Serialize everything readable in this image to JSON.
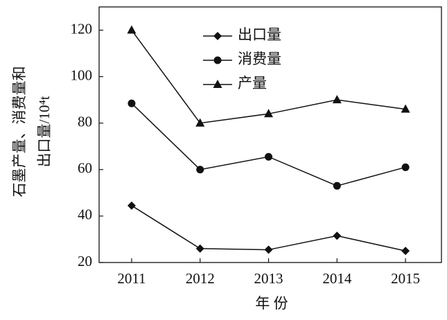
{
  "chart_data": {
    "type": "line",
    "categories": [
      "2011",
      "2012",
      "2013",
      "2014",
      "2015"
    ],
    "xlabel": "年 份",
    "ylabel": [
      "石墨产量、消费量和",
      "出口量/10⁴t"
    ],
    "ylim": [
      20,
      130
    ],
    "yticks": [
      20,
      40,
      60,
      80,
      100,
      120
    ],
    "legend": "upper center",
    "series": [
      {
        "name": "出口量",
        "color": "#111111",
        "marker": "diamond",
        "values": [
          44.5,
          26,
          25.5,
          31.5,
          25
        ]
      },
      {
        "name": "消费量",
        "color": "#111111",
        "marker": "circle",
        "values": [
          88.5,
          60,
          65.5,
          53,
          61
        ]
      },
      {
        "name": "产量",
        "color": "#111111",
        "marker": "triangle",
        "values": [
          120,
          80,
          84,
          90,
          86
        ]
      }
    ]
  }
}
